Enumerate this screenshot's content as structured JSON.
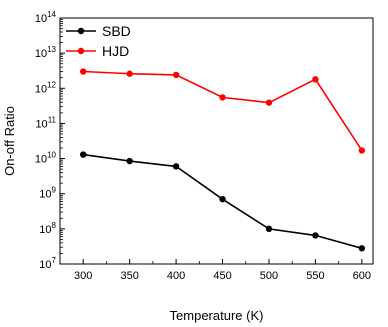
{
  "chart_data": {
    "type": "line",
    "title": "",
    "xlabel": "Temperature (K)",
    "ylabel": "On-off Ratio",
    "x": [
      300,
      350,
      400,
      450,
      500,
      550,
      600
    ],
    "xlim": [
      275,
      612
    ],
    "yscale": "log",
    "ylim_exp": [
      7,
      14
    ],
    "ytick_exponents": [
      7,
      8,
      9,
      10,
      11,
      12,
      13,
      14
    ],
    "xticks": [
      300,
      350,
      400,
      450,
      500,
      550,
      600
    ],
    "grid": false,
    "legend": "top-left",
    "series": [
      {
        "name": "SBD",
        "color": "#000000",
        "values": [
          13000000000.0,
          8500000000.0,
          6000000000.0,
          700000000.0,
          100000000.0,
          65000000.0,
          28000000.0
        ]
      },
      {
        "name": "HJD",
        "color": "#ff0000",
        "values": [
          3000000000000.0,
          2600000000000.0,
          2400000000000.0,
          550000000000.0,
          390000000000.0,
          1800000000000.0,
          17000000000.0
        ]
      }
    ]
  }
}
